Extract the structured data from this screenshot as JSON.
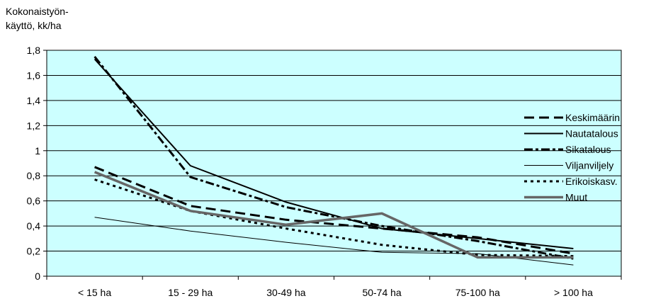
{
  "chart_data": {
    "type": "line",
    "ylabel_lines": [
      "Kokonaistyön-",
      "käyttö, kk/ha"
    ],
    "categories": [
      "< 15 ha",
      "15 - 29 ha",
      "30-49 ha",
      "50-74 ha",
      "75-100 ha",
      "> 100 ha"
    ],
    "ylim": [
      0,
      1.8
    ],
    "yticks": [
      {
        "value": 0,
        "label": "0"
      },
      {
        "value": 0.2,
        "label": "0,2"
      },
      {
        "value": 0.4,
        "label": "0,4"
      },
      {
        "value": 0.6,
        "label": "0,6"
      },
      {
        "value": 0.8,
        "label": "0,8"
      },
      {
        "value": 1.0,
        "label": "1"
      },
      {
        "value": 1.2,
        "label": "1,2"
      },
      {
        "value": 1.4,
        "label": "1,4"
      },
      {
        "value": 1.6,
        "label": "1,6"
      },
      {
        "value": 1.8,
        "label": "1,8"
      }
    ],
    "grid": "horizontal",
    "plot_background": "#ccffff",
    "legend_position": "right",
    "series": [
      {
        "name": "Keskimäärin",
        "style": "long-dash",
        "color": "#000000",
        "values": [
          0.87,
          0.56,
          0.45,
          0.38,
          0.31,
          0.18
        ]
      },
      {
        "name": "Nautatalous",
        "style": "solid",
        "color": "#000000",
        "values": [
          1.73,
          0.88,
          0.59,
          0.38,
          0.3,
          0.22
        ]
      },
      {
        "name": "Sikatalous",
        "style": "dash-dot",
        "color": "#000000",
        "values": [
          1.75,
          0.79,
          0.55,
          0.4,
          0.28,
          0.14
        ]
      },
      {
        "name": "Viljanviljely",
        "style": "thin",
        "color": "#000000",
        "values": [
          0.47,
          0.36,
          0.27,
          0.19,
          0.18,
          0.09
        ]
      },
      {
        "name": "Erikoiskasv.",
        "style": "dotted",
        "color": "#000000",
        "values": [
          0.77,
          0.52,
          0.38,
          0.25,
          0.17,
          0.16
        ]
      },
      {
        "name": "Muut",
        "style": "thick-gray",
        "color": "#666666",
        "values": [
          0.83,
          0.52,
          0.41,
          0.5,
          0.15,
          0.15
        ]
      }
    ]
  }
}
